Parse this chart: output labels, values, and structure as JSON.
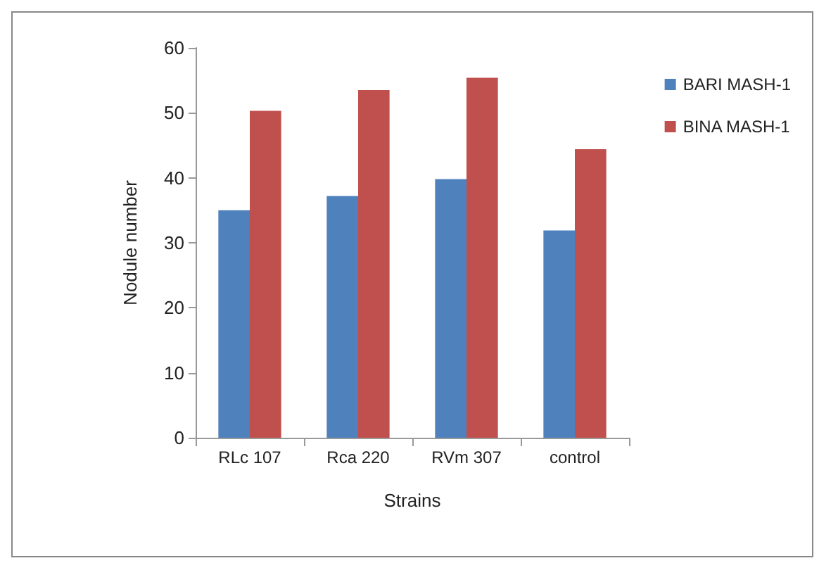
{
  "chart_data": {
    "type": "bar",
    "xlabel": "Strains",
    "ylabel": "Nodule number",
    "categories": [
      "RLc 107",
      "Rca 220",
      "RVm 307",
      "control"
    ],
    "series": [
      {
        "name": "BARI MASH-1",
        "color": "#4f81bd",
        "values": [
          35,
          37.2,
          39.8,
          31.9
        ]
      },
      {
        "name": "BINA MASH-1",
        "color": "#c0504d",
        "values": [
          50.3,
          53.5,
          55.4,
          44.4
        ]
      }
    ],
    "ylim": [
      0,
      60
    ],
    "yticks": [
      0,
      10,
      20,
      30,
      40,
      50,
      60
    ],
    "grid": false,
    "legend": "top right"
  }
}
